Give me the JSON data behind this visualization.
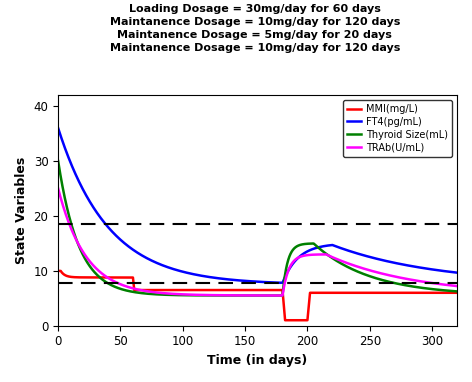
{
  "title_lines": [
    "Loading Dosage = 30mg/day for 60 days",
    "Maintanence Dosage = 10mg/day for 120 days",
    "Maintanence Dosage = 5mg/day for 20 days",
    "Maintanence Dosage = 10mg/day for 120 days"
  ],
  "xlabel": "Time (in days)",
  "ylabel": "State Variables",
  "xlim": [
    0,
    320
  ],
  "ylim": [
    0,
    42
  ],
  "yticks": [
    0,
    10,
    20,
    30,
    40
  ],
  "xticks": [
    0,
    50,
    100,
    150,
    200,
    250,
    300
  ],
  "dashed_lines": [
    7.8,
    18.5
  ],
  "legend_labels": [
    "MMI(mg/L)",
    "FT4(pg/mL)",
    "Thyroid Size(mL)",
    "TRAb(U/mL)"
  ],
  "line_colors": [
    "red",
    "blue",
    "green",
    "magenta"
  ],
  "background_color": "#ffffff"
}
